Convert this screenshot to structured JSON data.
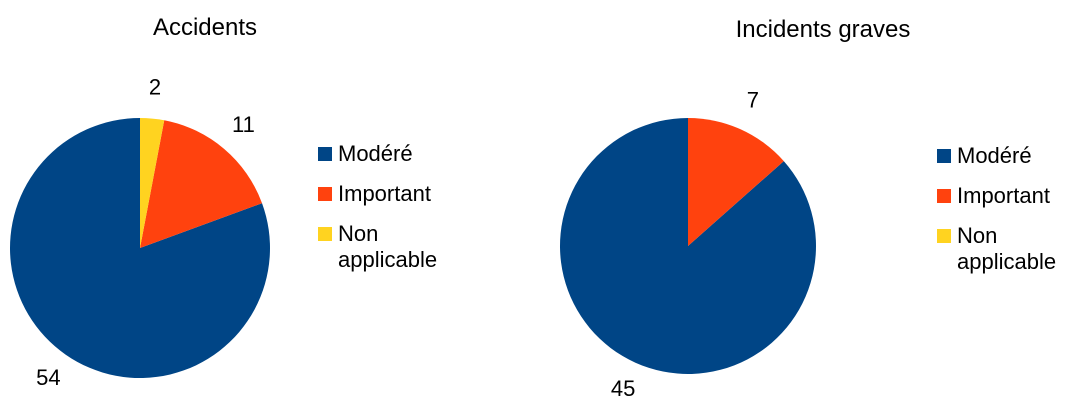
{
  "chart_data": [
    {
      "type": "pie",
      "title": "Accidents",
      "categories": [
        "Modéré",
        "Important",
        "Non applicable"
      ],
      "values": [
        54,
        11,
        2
      ],
      "colors": [
        "#004586",
        "#ff420e",
        "#ffd320"
      ],
      "legend": "right"
    },
    {
      "type": "pie",
      "title": "Incidents graves",
      "categories": [
        "Modéré",
        "Important",
        "Non applicable"
      ],
      "values": [
        45,
        7,
        0
      ],
      "colors": [
        "#004586",
        "#ff420e",
        "#ffd320"
      ],
      "legend": "right"
    }
  ]
}
